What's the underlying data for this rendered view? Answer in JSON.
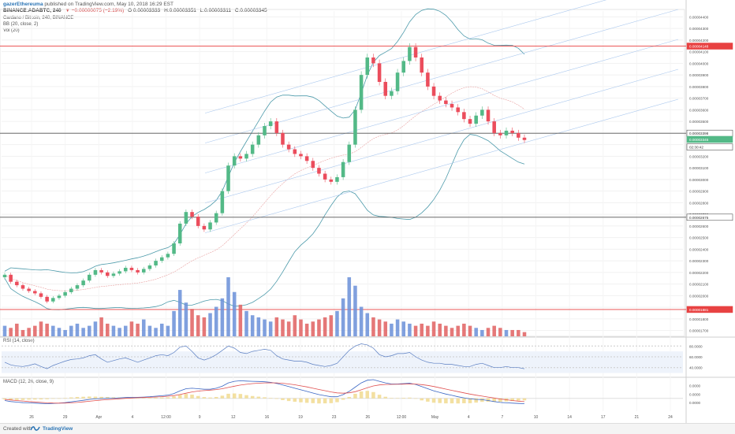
{
  "header": {
    "username": "gazerEthereuma",
    "published": "published on TradingView.com, May 10, 2018 16:29 EST",
    "symbol_line": "BINANCE:ADABTC, 240",
    "change": "▼ −0.00000075 (−2.19%)",
    "open": "O:0.00003333",
    "high": "H:0.00003351",
    "low": "L:0.00003311",
    "close": "C:0.00003345",
    "title": "Cardano / Bitcoin, 240, BINANCE",
    "bb_label": "BB (20, close, 2)",
    "vol_label": "Vol (20)"
  },
  "rsi_label": "RSI (14, close)",
  "macd_label": "MACD (12, 26, close, 9)",
  "footer": {
    "created": "Created with",
    "brand": "TradingView"
  },
  "colors": {
    "up": "#53b987",
    "down": "#eb4d5c",
    "hline": "#e84141",
    "axis": "#999999",
    "vol_up": "#6a8fd8",
    "vol_down": "#e06060",
    "bb": "#4c9aaa"
  },
  "chart_data": [
    {
      "type": "candlestick",
      "title": "Cardano / Bitcoin, 240, BINANCE",
      "x_tick_labels": [
        "26",
        "29",
        "Apr",
        "4",
        "12:00",
        "9",
        "12",
        "16",
        "19",
        "23",
        "26",
        "12:00",
        "May",
        "4",
        "7",
        "10",
        "14",
        "17",
        "21",
        "24"
      ],
      "y_tick_labels": [
        "0.00004400",
        "0.00004300",
        "0.00004200",
        "0.00004100",
        "0.00004000",
        "0.00003900",
        "0.00003800",
        "0.00003700",
        "0.00003600",
        "0.00003500",
        "0.00003400",
        "0.00003300",
        "0.00003200",
        "0.00003100",
        "0.00003000",
        "0.00002900",
        "0.00002800",
        "0.00002700",
        "0.00002600",
        "0.00002500",
        "0.00002400",
        "0.00002300",
        "0.00002200",
        "0.00002100",
        "0.00002000",
        "0.00001900",
        "0.00001800",
        "0.00001700"
      ],
      "ylim": [
        1.65e-05,
        4.45e-05
      ],
      "price_labels": [
        {
          "value": 4.148e-05,
          "text": "0.00004148",
          "color": "#e84141"
        },
        {
          "value": 3.398e-05,
          "text": "0.00003398",
          "color": "#333333"
        },
        {
          "value": 3.345e-05,
          "text": "0.00003345",
          "color": "#53b987"
        },
        {
          "value": 3.28e-05,
          "text": "02:30:42",
          "color": "#333333"
        },
        {
          "value": 2.675e-05,
          "text": "0.00002675",
          "color": "#333333"
        },
        {
          "value": 1.881e-05,
          "text": "0.00001881",
          "color": "#e84141"
        }
      ],
      "horizontal_levels": [
        {
          "value": 4.148e-05,
          "color": "#e84141"
        },
        {
          "value": 3.398e-05,
          "color": "#555555"
        },
        {
          "value": 2.675e-05,
          "color": "#555555"
        },
        {
          "value": 1.881e-05,
          "color": "#e84141"
        }
      ],
      "close_series": [
        2.18e-05,
        2.12e-05,
        2.09e-05,
        2.06e-05,
        2.04e-05,
        2.02e-05,
        1.99e-05,
        1.95e-05,
        1.98e-05,
        2e-05,
        2.03e-05,
        2.06e-05,
        2.09e-05,
        2.13e-05,
        2.18e-05,
        2.22e-05,
        2.2e-05,
        2.17e-05,
        2.19e-05,
        2.21e-05,
        2.24e-05,
        2.22e-05,
        2.2e-05,
        2.23e-05,
        2.26e-05,
        2.3e-05,
        2.33e-05,
        2.36e-05,
        2.45e-05,
        2.62e-05,
        2.72e-05,
        2.68e-05,
        2.6e-05,
        2.57e-05,
        2.63e-05,
        2.71e-05,
        2.9e-05,
        3.12e-05,
        3.2e-05,
        3.18e-05,
        3.22e-05,
        3.3e-05,
        3.38e-05,
        3.46e-05,
        3.5e-05,
        3.4e-05,
        3.3e-05,
        3.26e-05,
        3.22e-05,
        3.2e-05,
        3.16e-05,
        3.1e-05,
        3.05e-05,
        3e-05,
        2.98e-05,
        3.02e-05,
        3.15e-05,
        3.3e-05,
        3.6e-05,
        3.9e-05,
        4.05e-05,
        4e-05,
        3.84e-05,
        3.72e-05,
        3.76e-05,
        3.92e-05,
        4.02e-05,
        4.14e-05,
        4.05e-05,
        3.92e-05,
        3.8e-05,
        3.72e-05,
        3.68e-05,
        3.65e-05,
        3.62e-05,
        3.58e-05,
        3.52e-05,
        3.48e-05,
        3.55e-05,
        3.6e-05,
        3.5e-05,
        3.4e-05,
        3.38e-05,
        3.42e-05,
        3.4e-05,
        3.36e-05,
        3.34e-05
      ]
    },
    {
      "type": "bar",
      "name": "Volume",
      "values": [
        5,
        4,
        6,
        3,
        4,
        5,
        7,
        6,
        5,
        4,
        3,
        5,
        6,
        4,
        5,
        7,
        9,
        6,
        5,
        4,
        5,
        7,
        6,
        8,
        5,
        4,
        6,
        5,
        12,
        22,
        16,
        13,
        10,
        9,
        11,
        14,
        18,
        28,
        21,
        15,
        12,
        10,
        9,
        8,
        7,
        9,
        8,
        7,
        10,
        8,
        6,
        7,
        8,
        9,
        10,
        12,
        18,
        28,
        24,
        14,
        11,
        9,
        8,
        7,
        6,
        8,
        7,
        6,
        5,
        6,
        5,
        7,
        6,
        5,
        4,
        5,
        6,
        5,
        4,
        3,
        4,
        5,
        4,
        3,
        3,
        3,
        2
      ]
    },
    {
      "type": "line",
      "name": "RSI",
      "y_tick_labels": [
        "80.0000",
        "60.0000",
        "40.0000"
      ],
      "ylim": [
        25,
        95
      ],
      "values": [
        50,
        45,
        43,
        42,
        44,
        47,
        42,
        38,
        44,
        48,
        52,
        55,
        56,
        58,
        62,
        64,
        56,
        50,
        53,
        56,
        58,
        54,
        50,
        54,
        58,
        62,
        64,
        62,
        68,
        78,
        80,
        70,
        58,
        54,
        58,
        64,
        72,
        80,
        76,
        68,
        66,
        70,
        72,
        74,
        72,
        62,
        56,
        54,
        52,
        52,
        50,
        46,
        44,
        42,
        44,
        48,
        60,
        72,
        80,
        84,
        82,
        76,
        64,
        60,
        62,
        66,
        66,
        68,
        60,
        54,
        50,
        48,
        48,
        46,
        46,
        44,
        42,
        42,
        46,
        48,
        44,
        40,
        40,
        42,
        40,
        40,
        38
      ]
    },
    {
      "type": "line",
      "name": "MACD",
      "y_tick_labels": [
        "0.0000",
        "0.0000",
        "0.0000"
      ],
      "ylim": [
        -1.2e-06,
        1.9e-06
      ],
      "macd": [
        -0.2,
        -0.3,
        -0.35,
        -0.4,
        -0.42,
        -0.45,
        -0.48,
        -0.5,
        -0.48,
        -0.45,
        -0.4,
        -0.33,
        -0.25,
        -0.18,
        -0.1,
        -0.05,
        -0.02,
        0.0,
        0.02,
        0.05,
        0.08,
        0.1,
        0.1,
        0.12,
        0.15,
        0.2,
        0.25,
        0.3,
        0.45,
        0.7,
        0.9,
        0.95,
        0.9,
        0.85,
        0.85,
        0.95,
        1.15,
        1.45,
        1.6,
        1.65,
        1.62,
        1.6,
        1.58,
        1.55,
        1.5,
        1.4,
        1.25,
        1.1,
        0.95,
        0.8,
        0.65,
        0.5,
        0.35,
        0.25,
        0.15,
        0.15,
        0.35,
        0.65,
        1.05,
        1.45,
        1.7,
        1.75,
        1.6,
        1.45,
        1.35,
        1.35,
        1.38,
        1.42,
        1.3,
        1.1,
        0.9,
        0.7,
        0.55,
        0.4,
        0.28,
        0.15,
        0.05,
        -0.05,
        -0.1,
        -0.12,
        -0.2,
        -0.3,
        -0.38,
        -0.42,
        -0.45,
        -0.48,
        -0.5
      ],
      "signal": [
        -0.1,
        -0.15,
        -0.2,
        -0.25,
        -0.3,
        -0.34,
        -0.38,
        -0.42,
        -0.44,
        -0.45,
        -0.44,
        -0.42,
        -0.38,
        -0.33,
        -0.27,
        -0.21,
        -0.16,
        -0.12,
        -0.08,
        -0.04,
        0.0,
        0.03,
        0.06,
        0.08,
        0.1,
        0.13,
        0.16,
        0.2,
        0.26,
        0.36,
        0.48,
        0.6,
        0.68,
        0.73,
        0.77,
        0.82,
        0.9,
        1.02,
        1.14,
        1.24,
        1.32,
        1.38,
        1.42,
        1.45,
        1.46,
        1.45,
        1.41,
        1.35,
        1.27,
        1.17,
        1.07,
        0.95,
        0.83,
        0.72,
        0.6,
        0.51,
        0.48,
        0.52,
        0.62,
        0.8,
        1.0,
        1.16,
        1.26,
        1.3,
        1.31,
        1.32,
        1.33,
        1.35,
        1.34,
        1.29,
        1.21,
        1.11,
        0.99,
        0.87,
        0.75,
        0.63,
        0.51,
        0.4,
        0.3,
        0.21,
        0.12,
        0.03,
        -0.06,
        -0.13,
        -0.2,
        -0.26,
        -0.31
      ]
    }
  ]
}
